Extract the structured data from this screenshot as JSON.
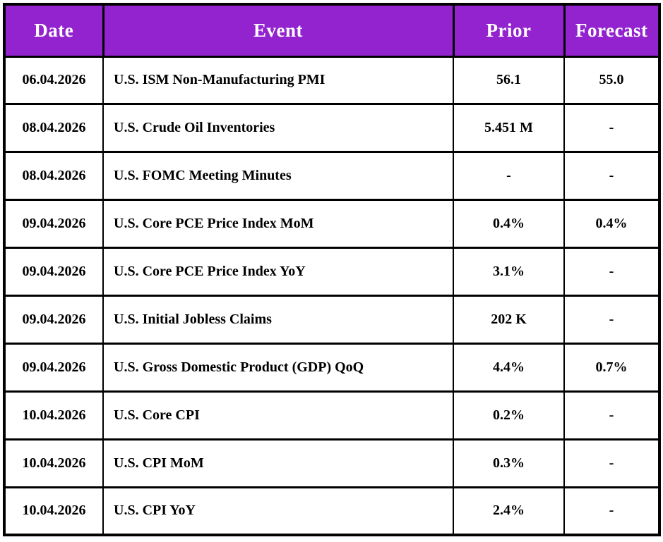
{
  "chart_data": {
    "type": "table",
    "columns": [
      "Date",
      "Event",
      "Prior",
      "Forecast"
    ],
    "rows": [
      [
        "06.04.2026",
        "U.S. ISM Non-Manufacturing PMI",
        "56.1",
        "55.0"
      ],
      [
        "08.04.2026",
        "U.S. Crude Oil Inventories",
        "5.451 M",
        "-"
      ],
      [
        "08.04.2026",
        "U.S. FOMC Meeting Minutes",
        "-",
        "-"
      ],
      [
        "09.04.2026",
        "U.S. Core PCE Price Index MoM",
        "0.4%",
        "0.4%"
      ],
      [
        "09.04.2026",
        "U.S. Core PCE Price Index YoY",
        "3.1%",
        "-"
      ],
      [
        "09.04.2026",
        "U.S. Initial Jobless Claims",
        "202 K",
        "-"
      ],
      [
        "09.04.2026",
        "U.S. Gross Domestic Product (GDP) QoQ",
        "4.4%",
        "0.7%"
      ],
      [
        "10.04.2026",
        "U.S. Core CPI",
        "0.2%",
        "-"
      ],
      [
        "10.04.2026",
        "U.S. CPI MoM",
        "0.3%",
        "-"
      ],
      [
        "10.04.2026",
        "U.S. CPI YoY",
        "2.4%",
        "-"
      ]
    ]
  },
  "colors": {
    "header_bg": "#9223CE",
    "header_text": "#FFFFFF",
    "body_text": "#000000",
    "border": "#000000",
    "page_bg": "#FFFFFF"
  }
}
